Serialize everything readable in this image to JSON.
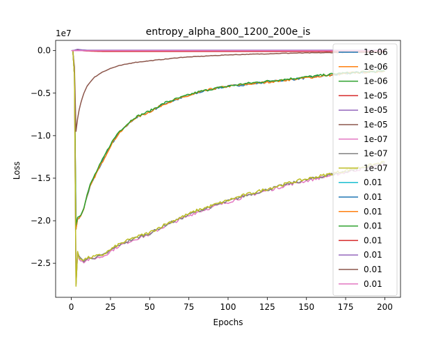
{
  "chart_data": {
    "type": "line",
    "title": "entropy_alpha_800_1200_200e_is",
    "xlabel": "Epochs",
    "ylabel": "Loss",
    "offset_text": "1e7",
    "xlim": [
      -10,
      210
    ],
    "ylim": [
      -2.9,
      0.12
    ],
    "xticks": [
      0,
      25,
      50,
      75,
      100,
      125,
      150,
      175,
      200
    ],
    "yticks": [
      0.0,
      -0.5,
      -1.0,
      -1.5,
      -2.0,
      -2.5
    ],
    "ytick_labels": [
      "0.0",
      "−0.5",
      "−1.0",
      "−1.5",
      "−2.0",
      "−2.5"
    ],
    "legend_position": "right",
    "series": [
      {
        "name": "1e-06",
        "color": "#1f77b4",
        "curve": "green",
        "x": [
          0,
          1,
          2,
          3,
          4,
          5,
          6,
          8,
          10,
          12,
          15,
          20,
          25,
          30,
          40,
          50,
          60,
          70,
          80,
          90,
          100,
          110,
          120,
          130,
          140,
          150,
          160,
          170,
          180,
          190,
          200
        ],
        "y": [
          0,
          0,
          -0.3,
          -2.1,
          -1.98,
          -1.96,
          -1.95,
          -1.85,
          -1.72,
          -1.6,
          -1.48,
          -1.3,
          -1.12,
          -0.98,
          -0.8,
          -0.72,
          -0.62,
          -0.56,
          -0.5,
          -0.45,
          -0.42,
          -0.4,
          -0.38,
          -0.36,
          -0.34,
          -0.32,
          -0.3,
          -0.28,
          -0.26,
          -0.25,
          -0.24
        ]
      },
      {
        "name": "1e-06",
        "color": "#ff7f0e",
        "curve": "green",
        "x": [
          0,
          1,
          2,
          3,
          4,
          5,
          6,
          8,
          10,
          12,
          15,
          20,
          25,
          30,
          40,
          50,
          60,
          70,
          80,
          90,
          100,
          110,
          120,
          130,
          140,
          150,
          160,
          170,
          180,
          190,
          200
        ],
        "y": [
          0,
          0,
          -0.3,
          -2.1,
          -1.98,
          -1.96,
          -1.95,
          -1.85,
          -1.72,
          -1.6,
          -1.48,
          -1.3,
          -1.12,
          -0.98,
          -0.8,
          -0.72,
          -0.62,
          -0.56,
          -0.5,
          -0.45,
          -0.42,
          -0.4,
          -0.38,
          -0.36,
          -0.34,
          -0.32,
          -0.3,
          -0.28,
          -0.26,
          -0.25,
          -0.24
        ]
      },
      {
        "name": "1e-06",
        "color": "#2ca02c",
        "curve": "green",
        "x": [
          0,
          1,
          2,
          3,
          4,
          5,
          6,
          8,
          10,
          12,
          15,
          20,
          25,
          30,
          40,
          50,
          60,
          70,
          80,
          90,
          100,
          110,
          120,
          130,
          140,
          150,
          160,
          170,
          180,
          190,
          200
        ],
        "y": [
          0,
          0,
          -0.3,
          -2.05,
          -1.96,
          -1.95,
          -1.93,
          -1.84,
          -1.7,
          -1.58,
          -1.46,
          -1.28,
          -1.1,
          -0.96,
          -0.79,
          -0.71,
          -0.61,
          -0.55,
          -0.49,
          -0.45,
          -0.42,
          -0.39,
          -0.37,
          -0.35,
          -0.33,
          -0.31,
          -0.29,
          -0.27,
          -0.26,
          -0.25,
          -0.24
        ]
      },
      {
        "name": "1e-05",
        "color": "#d62728",
        "curve": "flat",
        "x": [
          0,
          2,
          4,
          6,
          10,
          20,
          40,
          60,
          80,
          100,
          120,
          140,
          160,
          180,
          200
        ],
        "y": [
          0,
          0,
          0.01,
          0,
          -0.005,
          -0.01,
          -0.01,
          -0.01,
          -0.01,
          -0.01,
          -0.01,
          -0.01,
          -0.01,
          -0.01,
          -0.01
        ]
      },
      {
        "name": "1e-05",
        "color": "#9467bd",
        "curve": "flat",
        "x": [
          0,
          2,
          4,
          6,
          10,
          20,
          40,
          60,
          80,
          100,
          120,
          140,
          160,
          180,
          200
        ],
        "y": [
          0,
          0.005,
          0.015,
          0.01,
          0.005,
          0.005,
          0.005,
          0.005,
          0.005,
          0.005,
          0.005,
          0.005,
          0.005,
          0.005,
          0.005
        ]
      },
      {
        "name": "1e-05",
        "color": "#8c564b",
        "curve": "brown",
        "x": [
          0,
          1,
          2,
          3,
          4,
          5,
          6,
          8,
          10,
          12,
          15,
          20,
          25,
          30,
          40,
          50,
          60,
          70,
          80,
          90,
          100,
          120,
          140,
          160,
          180,
          200
        ],
        "y": [
          0,
          0,
          -0.2,
          -0.95,
          -0.8,
          -0.7,
          -0.62,
          -0.5,
          -0.42,
          -0.37,
          -0.31,
          -0.25,
          -0.21,
          -0.18,
          -0.14,
          -0.12,
          -0.1,
          -0.08,
          -0.07,
          -0.06,
          -0.05,
          -0.04,
          -0.03,
          -0.025,
          -0.02,
          -0.02
        ]
      },
      {
        "name": "1e-07",
        "color": "#e377c2",
        "curve": "olive",
        "x": [
          0,
          1,
          2,
          3,
          4,
          5,
          6,
          8,
          10,
          15,
          20,
          25,
          30,
          40,
          50,
          60,
          70,
          80,
          90,
          100,
          110,
          120,
          130,
          140,
          150,
          160,
          170,
          180,
          190,
          200
        ],
        "y": [
          0,
          0,
          -0.3,
          -2.75,
          -2.38,
          -2.44,
          -2.46,
          -2.48,
          -2.46,
          -2.44,
          -2.42,
          -2.36,
          -2.3,
          -2.22,
          -2.16,
          -2.06,
          -1.98,
          -1.9,
          -1.84,
          -1.78,
          -1.72,
          -1.67,
          -1.62,
          -1.57,
          -1.53,
          -1.49,
          -1.45,
          -1.41,
          -1.37,
          -1.33
        ]
      },
      {
        "name": "1e-07",
        "color": "#7f7f7f",
        "curve": "olive",
        "x": [
          0,
          1,
          2,
          3,
          4,
          5,
          6,
          8,
          10,
          15,
          20,
          25,
          30,
          40,
          50,
          60,
          70,
          80,
          90,
          100,
          110,
          120,
          130,
          140,
          150,
          160,
          170,
          180,
          190,
          200
        ],
        "y": [
          0,
          0,
          -0.3,
          -2.75,
          -2.37,
          -2.43,
          -2.45,
          -2.47,
          -2.45,
          -2.43,
          -2.41,
          -2.35,
          -2.29,
          -2.21,
          -2.15,
          -2.05,
          -1.97,
          -1.89,
          -1.83,
          -1.77,
          -1.71,
          -1.66,
          -1.61,
          -1.56,
          -1.52,
          -1.48,
          -1.44,
          -1.4,
          -1.36,
          -1.32
        ]
      },
      {
        "name": "1e-07",
        "color": "#bcbd22",
        "curve": "olive",
        "x": [
          0,
          1,
          2,
          3,
          4,
          5,
          6,
          8,
          10,
          15,
          20,
          25,
          30,
          40,
          50,
          60,
          70,
          80,
          90,
          100,
          110,
          120,
          130,
          140,
          150,
          160,
          170,
          180,
          190,
          200
        ],
        "y": [
          0,
          0,
          -0.3,
          -2.77,
          -2.36,
          -2.44,
          -2.44,
          -2.46,
          -2.44,
          -2.42,
          -2.4,
          -2.34,
          -2.28,
          -2.2,
          -2.14,
          -2.04,
          -1.96,
          -1.88,
          -1.82,
          -1.76,
          -1.7,
          -1.65,
          -1.6,
          -1.55,
          -1.51,
          -1.47,
          -1.43,
          -1.39,
          -1.35,
          -1.31
        ]
      },
      {
        "name": "0.01",
        "color": "#17becf",
        "curve": "flat",
        "x": [
          0,
          200
        ],
        "y": [
          0,
          0
        ]
      },
      {
        "name": "0.01",
        "color": "#1f77b4",
        "curve": "flat",
        "x": [
          0,
          200
        ],
        "y": [
          0,
          0
        ]
      },
      {
        "name": "0.01",
        "color": "#ff7f0e",
        "curve": "flat",
        "x": [
          0,
          200
        ],
        "y": [
          0,
          0
        ]
      },
      {
        "name": "0.01",
        "color": "#2ca02c",
        "curve": "flat",
        "x": [
          0,
          200
        ],
        "y": [
          0,
          0
        ]
      },
      {
        "name": "0.01",
        "color": "#d62728",
        "curve": "flat",
        "x": [
          0,
          200
        ],
        "y": [
          0,
          0
        ]
      },
      {
        "name": "0.01",
        "color": "#9467bd",
        "curve": "flat",
        "x": [
          0,
          200
        ],
        "y": [
          0,
          0
        ]
      },
      {
        "name": "0.01",
        "color": "#8c564b",
        "curve": "flat",
        "x": [
          0,
          200
        ],
        "y": [
          0,
          0
        ]
      },
      {
        "name": "0.01",
        "color": "#e377c2",
        "curve": "flat",
        "x": [
          0,
          200
        ],
        "y": [
          0,
          0
        ]
      }
    ]
  }
}
